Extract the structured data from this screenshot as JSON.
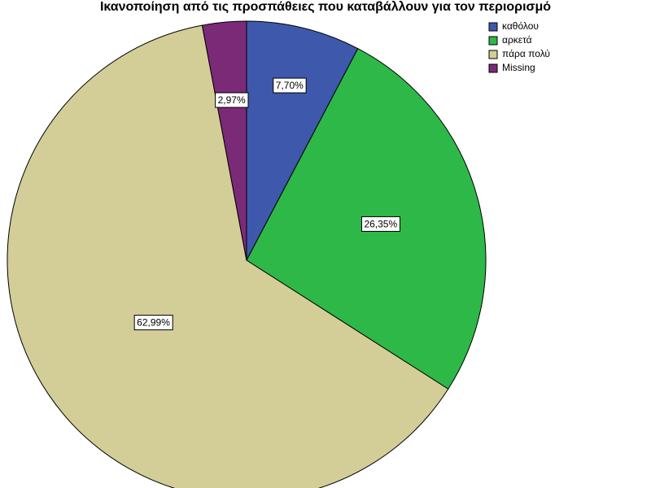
{
  "chart_data": {
    "type": "pie",
    "title": "Ικανοποίηση από τις προσπάθειες που καταβάλλουν για τον περιορισμό",
    "categories": [
      "καθόλου",
      "αρκετά",
      "πάρα πολύ",
      "Missing"
    ],
    "values": [
      7.7,
      26.35,
      62.99,
      2.97
    ],
    "value_labels": [
      "7,70%",
      "26,35%",
      "62,99%",
      "2,97%"
    ],
    "colors": [
      "#3e58ac",
      "#2eb848",
      "#d3ce97",
      "#7b2a78"
    ],
    "legend": "upper right"
  }
}
